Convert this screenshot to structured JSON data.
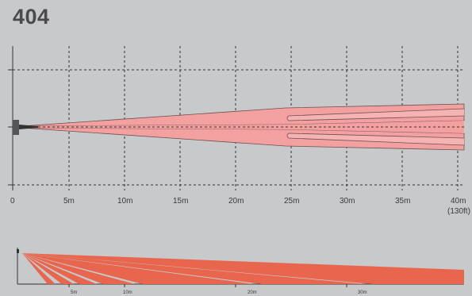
{
  "title": "404",
  "top_view": {
    "x_ticks": [
      "0",
      "5m",
      "10m",
      "15m",
      "20m",
      "25m",
      "30m",
      "35m",
      "40m"
    ],
    "x_sublabel": "(130ft)"
  },
  "side_view": {
    "x_ticks": [
      "5m",
      "10m",
      "20m",
      "30m"
    ]
  },
  "colors": {
    "background": "#c8c9cb",
    "beam_pink": "#f3a0a0",
    "beam_outline": "#6e5050",
    "side_beam": "#e8664e",
    "grid": "#333333"
  }
}
